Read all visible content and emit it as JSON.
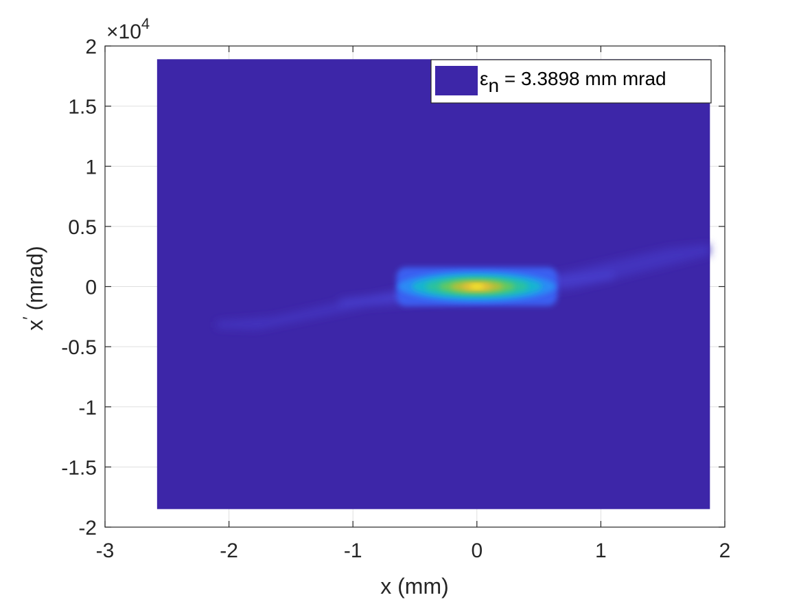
{
  "chart_data": {
    "type": "heatmap",
    "xlabel": "x (mm)",
    "ylabel": {
      "base": "x",
      "prime": "′",
      "rest": " (mrad)"
    },
    "y_exponent": {
      "base": "×10",
      "power": "4"
    },
    "xlim": [
      -3,
      2
    ],
    "ylim": [
      -20000,
      20000
    ],
    "x_ticks": [
      -3,
      -2,
      -1,
      0,
      1,
      2
    ],
    "x_tick_labels": [
      "-3",
      "-2",
      "-1",
      "0",
      "1",
      "2"
    ],
    "y_ticks": [
      -20000,
      -15000,
      -10000,
      -5000,
      0,
      5000,
      10000,
      15000,
      20000
    ],
    "y_tick_labels": [
      "-2",
      "-1.5",
      "-1",
      "-0.5",
      "0",
      "0.5",
      "1",
      "1.5",
      "2"
    ],
    "grid": true,
    "colormap": "parula",
    "background_color": "#3d26a8",
    "data_extent": {
      "x": [
        -2.58,
        1.88
      ],
      "y": [
        -18500,
        18900
      ]
    },
    "density": {
      "peak_x": 0,
      "peak_y": 0,
      "core_half_width_x": 0.65,
      "core_half_height_y": 1500,
      "tail_start": [
        -2.1,
        -3000
      ],
      "tail_end": [
        1.88,
        3300
      ]
    },
    "legend": {
      "symbol": "ε",
      "subscript": "n",
      "text": " = 3.3898 mm mrad",
      "color": "#3d26a8",
      "location": "top-right"
    }
  }
}
